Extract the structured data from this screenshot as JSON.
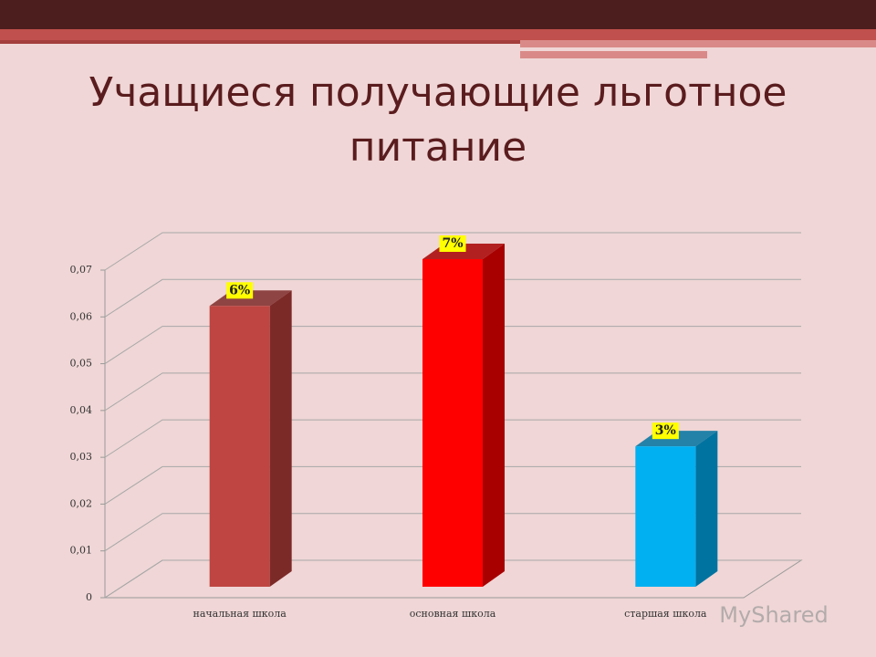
{
  "chart_data": {
    "type": "bar",
    "title": "Учащиеся получающие льготное питание",
    "categories": [
      "начальная школа",
      "основная  школа",
      "старшая школа"
    ],
    "values": [
      0.06,
      0.07,
      0.03
    ],
    "value_labels": [
      "6%",
      "7%",
      "3%"
    ],
    "colors": [
      "#be4541",
      "#ff0000",
      "#00b0f0"
    ],
    "side_colors": [
      "#7c2a28",
      "#a80000",
      "#0073a0"
    ],
    "ylim": [
      0,
      0.07
    ],
    "yticks": [
      0,
      {
        "value": 0.01,
        "label": "0,01"
      },
      {
        "value": 0.02,
        "label": "0,02"
      },
      {
        "value": 0.03,
        "label": "0,03"
      },
      {
        "value": 0.04,
        "label": "0,04"
      },
      {
        "value": 0.05,
        "label": "0,05"
      },
      {
        "value": 0.06,
        "label": "0,06"
      },
      {
        "value": 0.07,
        "label": "0,07"
      }
    ],
    "grid": true
  },
  "watermark": "MyShared"
}
